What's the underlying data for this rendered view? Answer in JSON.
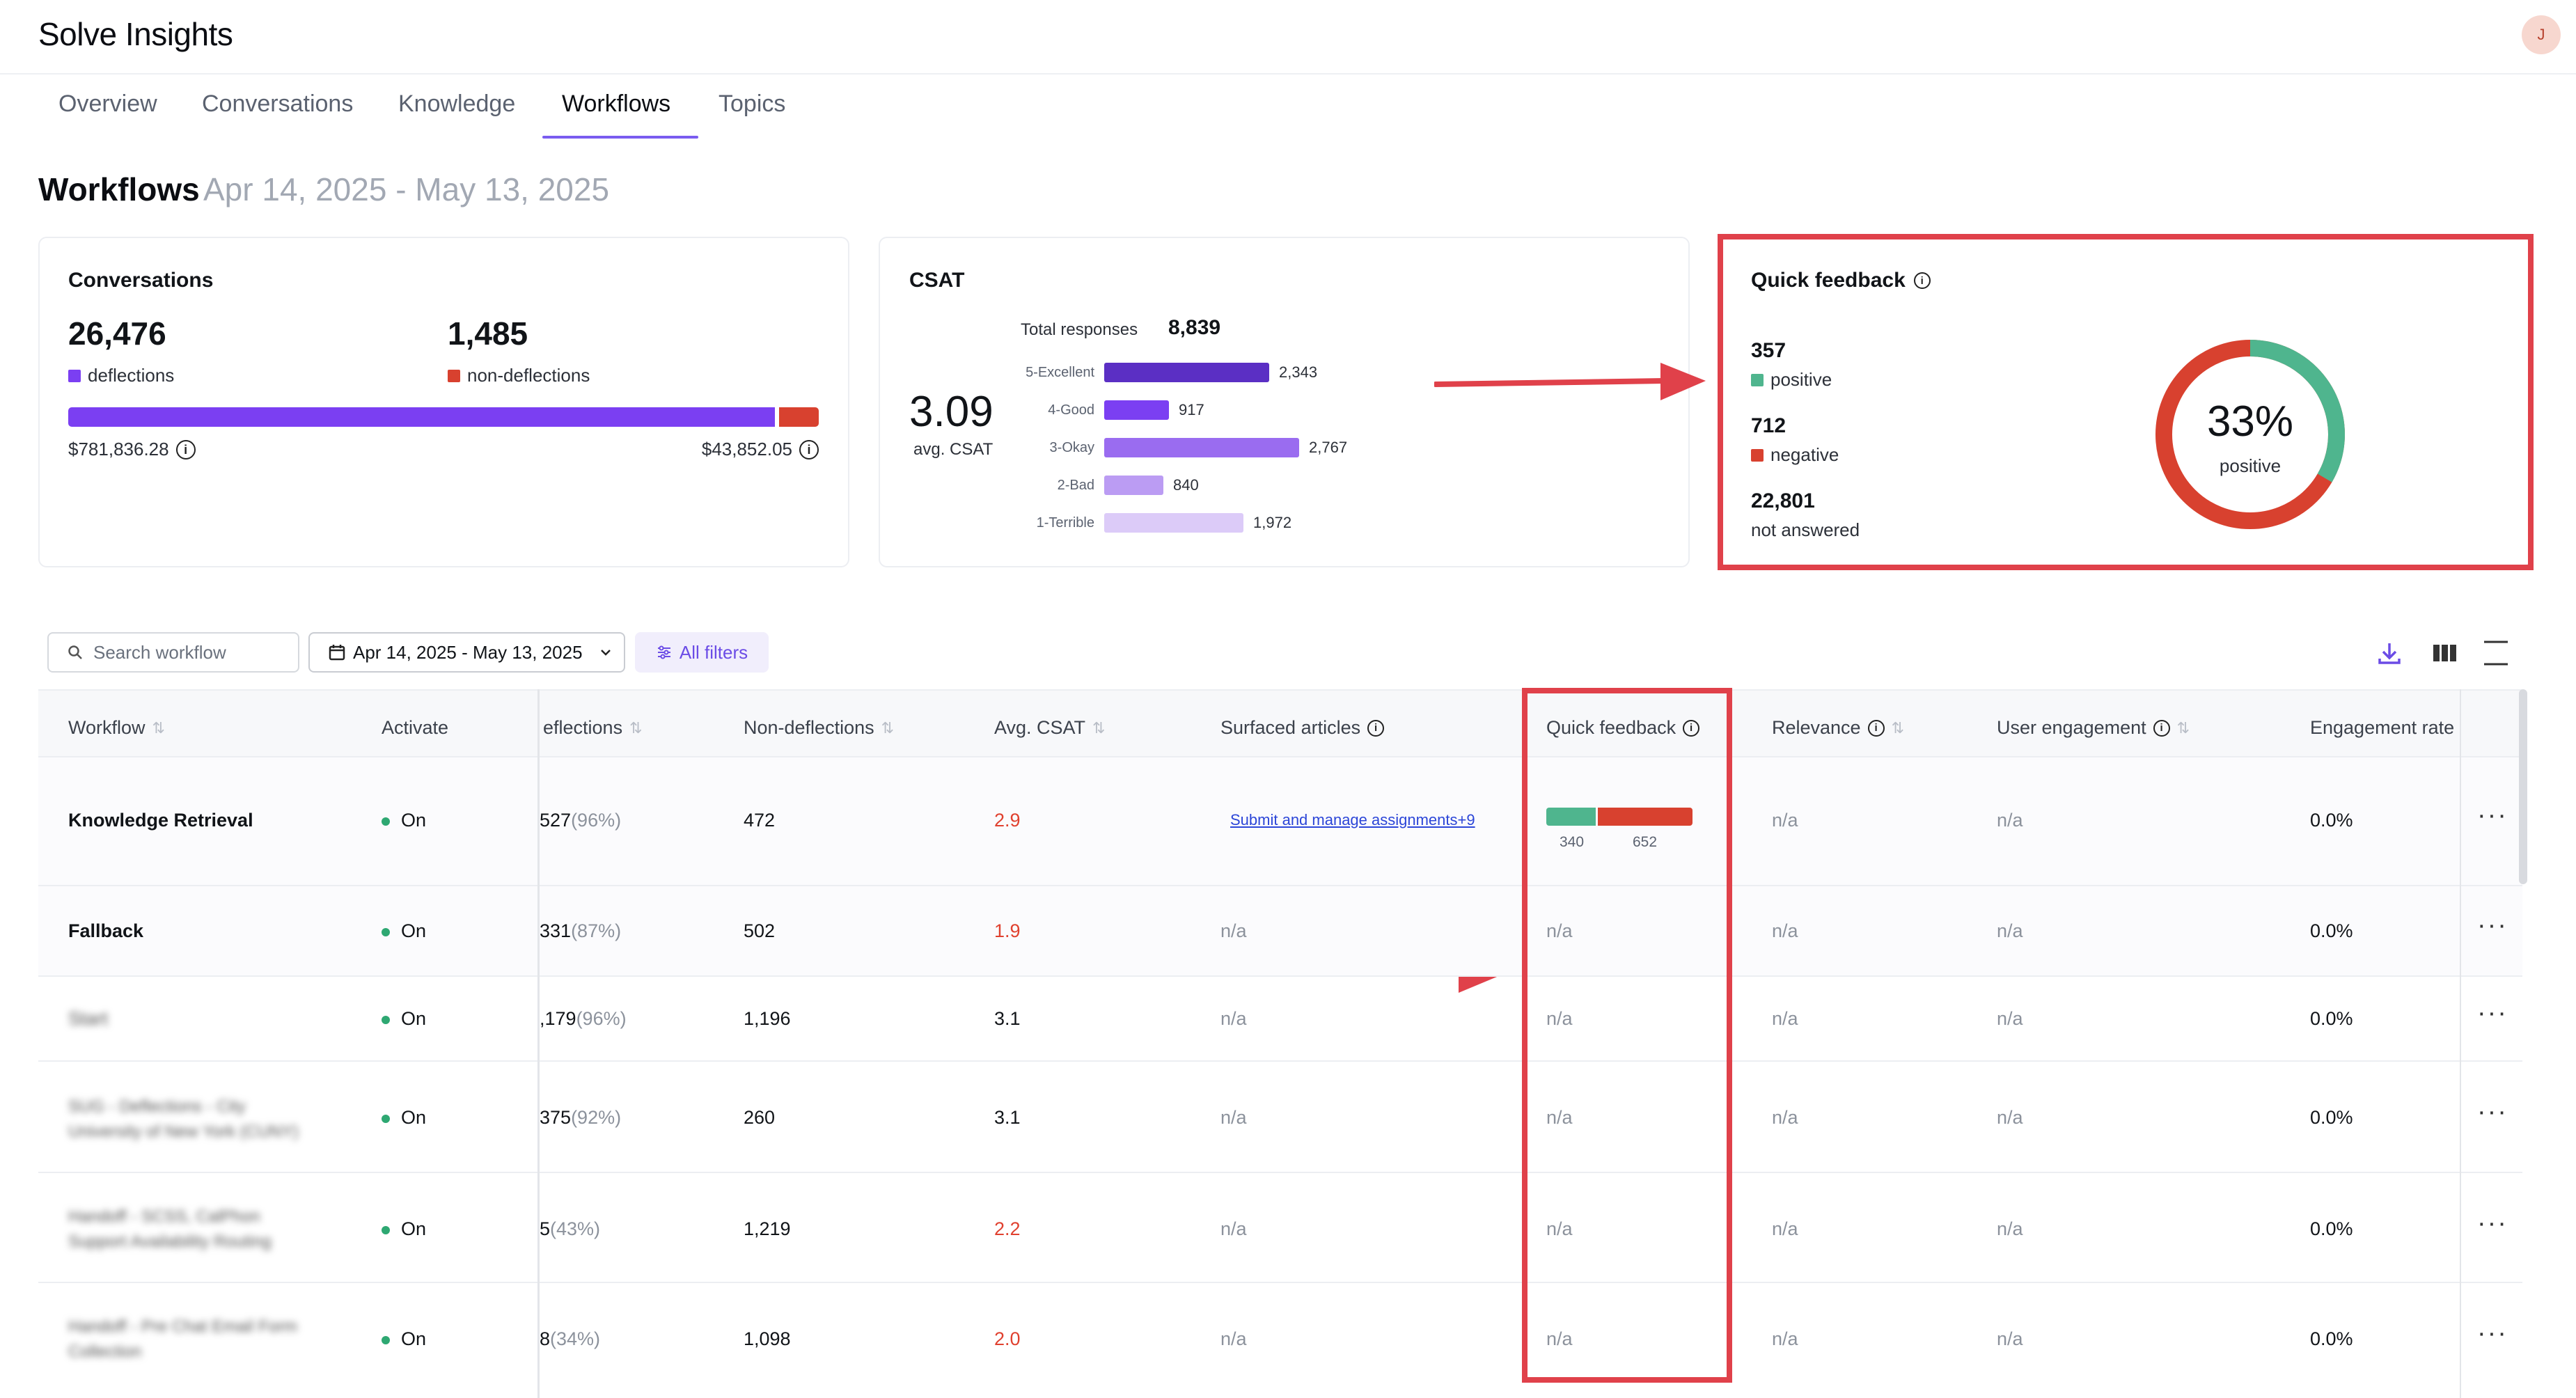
{
  "app": {
    "title": "Solve Insights",
    "avatar_initial": "J"
  },
  "tabs": [
    {
      "label": "Overview"
    },
    {
      "label": "Conversations"
    },
    {
      "label": "Knowledge"
    },
    {
      "label": "Workflows"
    },
    {
      "label": "Topics"
    }
  ],
  "active_tab": "Workflows",
  "page": {
    "title": "Workflows",
    "date_range": "Apr 14, 2025 - May 13, 2025"
  },
  "conversations_card": {
    "title": "Conversations",
    "deflections_value": "26,476",
    "deflections_label": "deflections",
    "non_deflections_value": "1,485",
    "non_deflections_label": "non-deflections",
    "deflection_share": 0.947,
    "deflections_cost": "$781,836.28",
    "non_deflections_cost": "$43,852.05",
    "colors": {
      "deflections": "#7b3ff2",
      "non_deflections": "#d8412f"
    }
  },
  "csat_card": {
    "title": "CSAT",
    "avg_value": "3.09",
    "avg_label": "avg. CSAT",
    "total_label": "Total responses",
    "total_value": "8,839",
    "bars": [
      {
        "label": "5-Excellent",
        "value": 2343,
        "display": "2,343",
        "color": "#5b2fc4"
      },
      {
        "label": "4-Good",
        "value": 917,
        "display": "917",
        "color": "#7b3ff2"
      },
      {
        "label": "3-Okay",
        "value": 2767,
        "display": "2,767",
        "color": "#9a6cf0"
      },
      {
        "label": "2-Bad",
        "value": 840,
        "display": "840",
        "color": "#bb9cf3"
      },
      {
        "label": "1-Terrible",
        "value": 1972,
        "display": "1,972",
        "color": "#dccbf8"
      }
    ]
  },
  "quick_feedback_card": {
    "title": "Quick feedback",
    "positive_value": "357",
    "positive_label": "positive",
    "negative_value": "712",
    "negative_label": "negative",
    "not_answered_value": "22,801",
    "not_answered_label": "not answered",
    "donut_percent": "33%",
    "donut_label": "positive",
    "positive_share": 0.334,
    "colors": {
      "positive": "#4fb58e",
      "negative": "#d8412f"
    }
  },
  "toolbar": {
    "search_placeholder": "Search workflow",
    "date_range": "Apr 14, 2025 - May 13, 2025",
    "filters_label": "All filters"
  },
  "table": {
    "headers": {
      "workflow": "Workflow",
      "activate": "Activate",
      "deflections": "eflections",
      "non_deflections": "Non-deflections",
      "avg_csat": "Avg. CSAT",
      "surfaced_articles": "Surfaced articles",
      "quick_feedback": "Quick feedback",
      "relevance": "Relevance",
      "user_engagement": "User engagement",
      "engagement_rate": "Engagement rate"
    },
    "rows": [
      {
        "workflow": "Knowledge Retrieval",
        "activate": "On",
        "deflections": "527",
        "deflections_pct": "(96%)",
        "non_deflections": "472",
        "avg_csat": "2.9",
        "csat_low": true,
        "surfaced": "Submit and manage assignments+9",
        "qf_positive": "340",
        "qf_negative": "652",
        "relevance": "n/a",
        "user_engagement": "n/a",
        "engagement_rate": "0.0%"
      },
      {
        "workflow": "Fallback",
        "activate": "On",
        "deflections": "331",
        "deflections_pct": "(87%)",
        "non_deflections": "502",
        "avg_csat": "1.9",
        "csat_low": true,
        "surfaced": "n/a",
        "quick_feedback": "n/a",
        "relevance": "n/a",
        "user_engagement": "n/a",
        "engagement_rate": "0.0%"
      },
      {
        "workflow": "Start",
        "activate": "On",
        "deflections": ",179",
        "deflections_pct": "(96%)",
        "non_deflections": "1,196",
        "avg_csat": "3.1",
        "csat_low": false,
        "surfaced": "n/a",
        "quick_feedback": "n/a",
        "relevance": "n/a",
        "user_engagement": "n/a",
        "engagement_rate": "0.0%"
      },
      {
        "workflow": "SUG - Deflections - City University of New York (CUNY)",
        "activate": "On",
        "deflections": "375",
        "deflections_pct": "(92%)",
        "non_deflections": "260",
        "avg_csat": "3.1",
        "csat_low": false,
        "surfaced": "n/a",
        "quick_feedback": "n/a",
        "relevance": "n/a",
        "user_engagement": "n/a",
        "engagement_rate": "0.0%"
      },
      {
        "workflow": "Handoff - SCSS, CalPhon Support Availability Routing",
        "activate": "On",
        "deflections": "5",
        "deflections_pct": "(43%)",
        "non_deflections": "1,219",
        "avg_csat": "2.2",
        "csat_low": true,
        "surfaced": "n/a",
        "quick_feedback": "n/a",
        "relevance": "n/a",
        "user_engagement": "n/a",
        "engagement_rate": "0.0%"
      },
      {
        "workflow": "Handoff - Pre Chat Email Form Collection",
        "activate": "On",
        "deflections": "8",
        "deflections_pct": "(34%)",
        "non_deflections": "1,098",
        "avg_csat": "2.0",
        "csat_low": true,
        "surfaced": "n/a",
        "quick_feedback": "n/a",
        "relevance": "n/a",
        "user_engagement": "n/a",
        "engagement_rate": "0.0%"
      }
    ]
  }
}
